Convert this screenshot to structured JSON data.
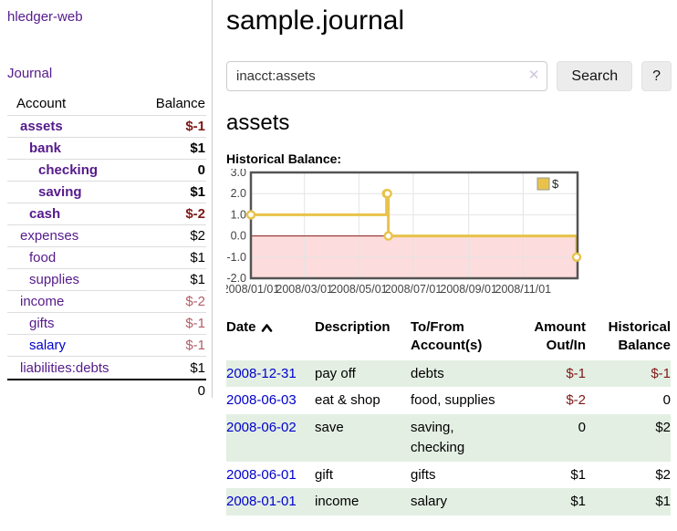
{
  "brand": "hledger-web",
  "sidebar": {
    "journal_label": "Journal",
    "account_header": "Account",
    "balance_header": "Balance",
    "accounts": [
      {
        "name": "assets",
        "depth": 1,
        "bold": true,
        "balance": "$-1",
        "neg": "strong"
      },
      {
        "name": "bank",
        "depth": 2,
        "bold": true,
        "balance": "$1"
      },
      {
        "name": "checking",
        "depth": 3,
        "bold": true,
        "balance": "0"
      },
      {
        "name": "saving",
        "depth": 3,
        "bold": true,
        "balance": "$1"
      },
      {
        "name": "cash",
        "depth": 2,
        "bold": true,
        "balance": "$-2",
        "neg": "strong"
      },
      {
        "name": "expenses",
        "depth": 1,
        "balance": "$2"
      },
      {
        "name": "food",
        "depth": 2,
        "balance": "$1"
      },
      {
        "name": "supplies",
        "depth": 2,
        "balance": "$1"
      },
      {
        "name": "income",
        "depth": 1,
        "balance": "$-2",
        "neg": "soft"
      },
      {
        "name": "gifts",
        "depth": 2,
        "balance": "$-1",
        "neg": "soft"
      },
      {
        "name": "salary",
        "depth": 2,
        "balance": "$-1",
        "neg": "soft",
        "link": "blue"
      },
      {
        "name": "liabilities:debts",
        "depth": 1,
        "balance": "$1"
      }
    ],
    "total": "0"
  },
  "header": {
    "title": "sample.journal"
  },
  "search": {
    "value": "inacct:assets",
    "clear_label": "✕",
    "button_label": "Search",
    "help_label": "?"
  },
  "register": {
    "account_title": "assets",
    "chart_title": "Historical Balance:",
    "columns": {
      "date": "Date",
      "description": "Description",
      "tofrom": "To/From\nAccount(s)",
      "amount": "Amount\nOut/In",
      "historical": "Historical\nBalance"
    },
    "sort": "ascending",
    "rows": [
      {
        "date": "2008-12-31",
        "description": "pay off",
        "accounts": "debts",
        "amount": "$-1",
        "amount_neg": true,
        "balance": "$-1",
        "balance_neg": true,
        "shade": true
      },
      {
        "date": "2008-06-03",
        "description": "eat & shop",
        "accounts": "food, supplies",
        "amount": "$-2",
        "amount_neg": true,
        "balance": "0"
      },
      {
        "date": "2008-06-02",
        "description": "save",
        "accounts": "saving,\nchecking",
        "amount": "0",
        "balance": "$2",
        "shade": true
      },
      {
        "date": "2008-06-01",
        "description": "gift",
        "accounts": "gifts",
        "amount": "$1",
        "balance": "$2"
      },
      {
        "date": "2008-01-01",
        "description": "income",
        "accounts": "salary",
        "amount": "$1",
        "balance": "$1",
        "shade": true
      }
    ]
  },
  "chart_data": {
    "type": "line",
    "title": "Historical Balance:",
    "series": [
      {
        "name": "$",
        "color": "#e8c24a",
        "step": true,
        "points": [
          [
            "2008-01-01",
            1
          ],
          [
            "2008-06-01",
            2
          ],
          [
            "2008-06-02",
            2
          ],
          [
            "2008-06-03",
            0
          ],
          [
            "2008-12-31",
            -1
          ]
        ]
      }
    ],
    "x_range": [
      "2008-01-01",
      "2009-01-01"
    ],
    "xticks": [
      "2008/01/01",
      "2008/03/01",
      "2008/05/01",
      "2008/07/01",
      "2008/09/01",
      "2008/11/01"
    ],
    "yticks": [
      3.0,
      2.0,
      1.0,
      0.0,
      -1.0,
      -2.0
    ],
    "ylim": [
      -2,
      3
    ],
    "grid": true,
    "grid_color": "#e4e4e4",
    "border_color": "#545454",
    "tick_label_color": "#444444",
    "legend_position": "top-right",
    "marker_fill": "#ffffff",
    "negative_region_color": "#fcdcdc",
    "zero_line_color": "#8b1a1a"
  }
}
